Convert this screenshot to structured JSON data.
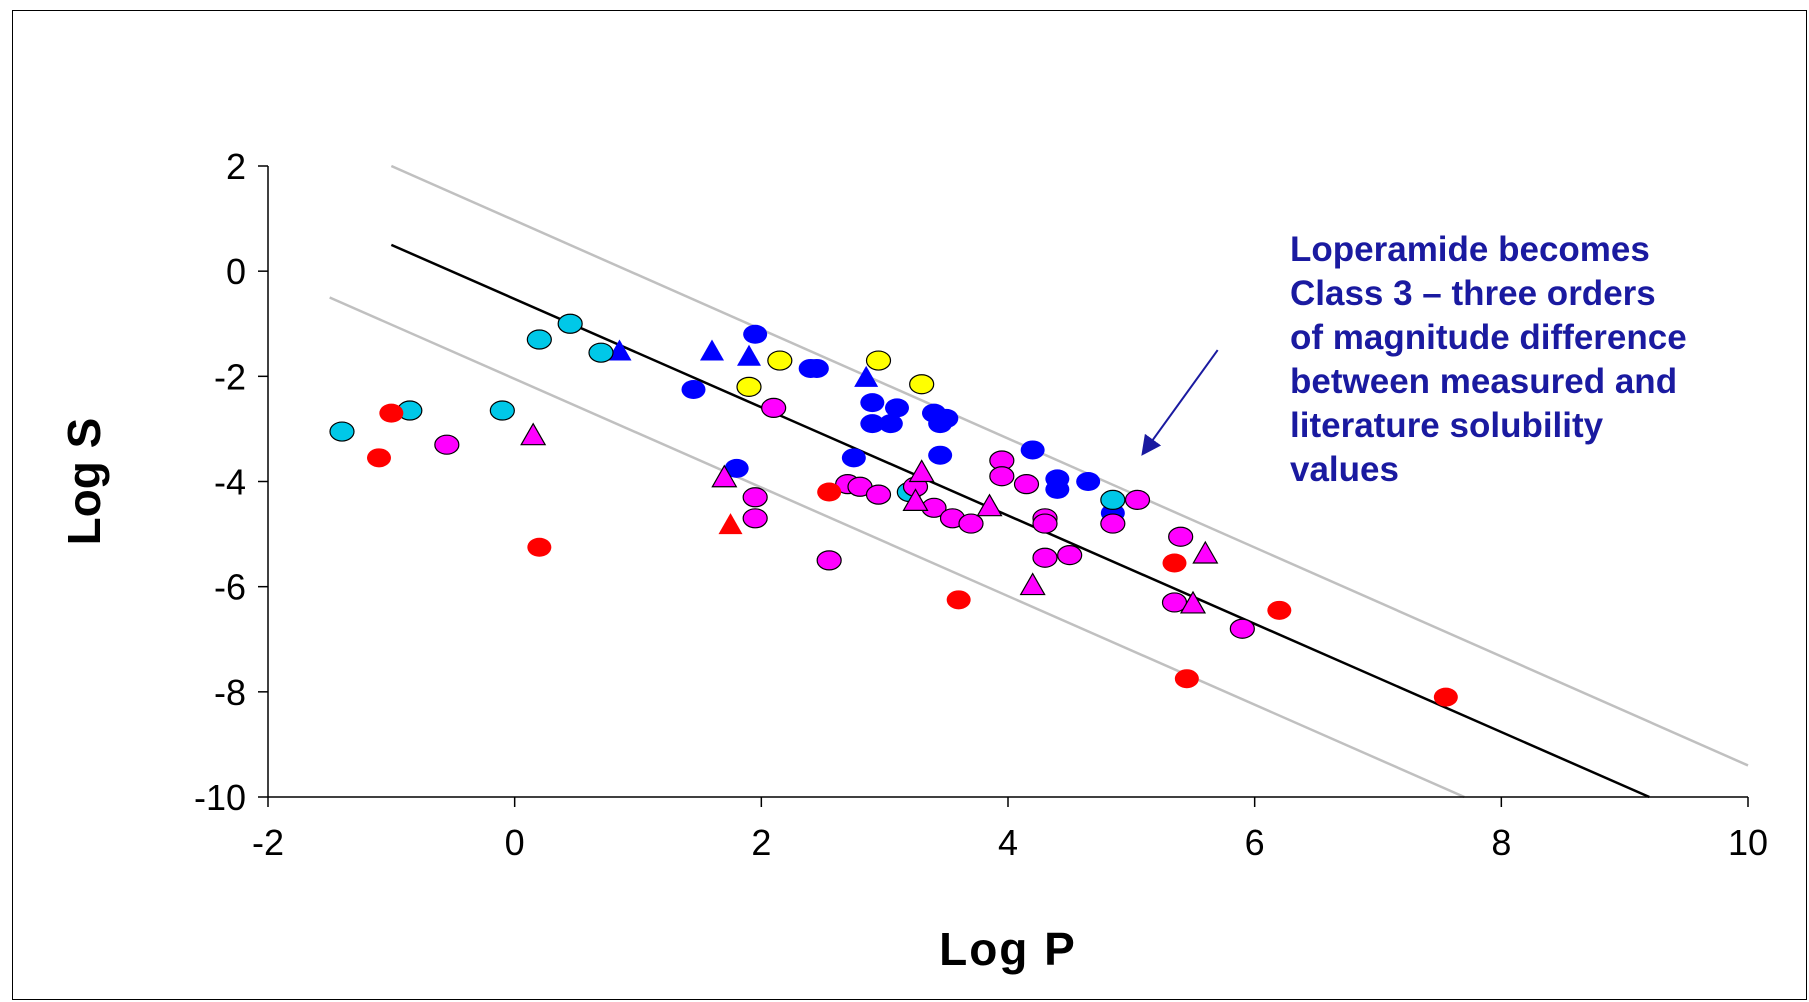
{
  "chart_data": {
    "type": "scatter",
    "xlabel": "Log P",
    "ylabel": "Log S",
    "xlim": [
      -2,
      10
    ],
    "ylim": [
      -10,
      2
    ],
    "x_ticks": [
      "-2",
      "0",
      "2",
      "4",
      "6",
      "8",
      "10"
    ],
    "y_ticks": [
      "2",
      "0",
      "-2",
      "-4",
      "-6",
      "-8",
      "-10"
    ],
    "grid": false,
    "annotation": {
      "lines": [
        "Loperamide becomes",
        "Class 3 – three orders",
        "of magnitude difference",
        "between measured and",
        "literature solubility",
        "values"
      ],
      "color": "#1a1aa0",
      "arrow_from": [
        5.7,
        -1.5
      ],
      "arrow_to": [
        5.1,
        -3.45
      ]
    },
    "reference_lines": [
      {
        "role": "fit",
        "color": "#000000",
        "x": [
          -1.0,
          9.2
        ],
        "y": [
          0.5,
          -10.0
        ]
      },
      {
        "role": "upper",
        "color": "#c0c0c0",
        "x": [
          -1.0,
          10.0
        ],
        "y": [
          2.0,
          -9.4
        ]
      },
      {
        "role": "lower",
        "color": "#c0c0c0",
        "x": [
          -1.5,
          7.7
        ],
        "y": [
          -0.5,
          -10.0
        ]
      }
    ],
    "series": [
      {
        "marker": "circle",
        "fill": "#0000ff",
        "stroke": "none",
        "points": [
          [
            1.95,
            -1.2
          ],
          [
            2.4,
            -1.85
          ],
          [
            2.45,
            -1.85
          ],
          [
            1.45,
            -2.25
          ],
          [
            2.9,
            -2.5
          ],
          [
            3.1,
            -2.6
          ],
          [
            3.4,
            -2.7
          ],
          [
            3.5,
            -2.8
          ],
          [
            2.9,
            -2.9
          ],
          [
            3.05,
            -2.9
          ],
          [
            3.45,
            -2.9
          ],
          [
            3.45,
            -3.5
          ],
          [
            2.75,
            -3.55
          ],
          [
            1.8,
            -3.75
          ],
          [
            4.2,
            -3.4
          ],
          [
            4.4,
            -3.95
          ],
          [
            4.65,
            -4.0
          ],
          [
            4.4,
            -4.15
          ],
          [
            4.85,
            -4.6
          ]
        ]
      },
      {
        "marker": "triangle",
        "fill": "#0000ff",
        "stroke": "none",
        "points": [
          [
            0.85,
            -1.5
          ],
          [
            1.6,
            -1.5
          ],
          [
            1.9,
            -1.6
          ],
          [
            2.85,
            -2.0
          ]
        ]
      },
      {
        "marker": "circle",
        "fill": "#00c8e8",
        "stroke": "#000000",
        "points": [
          [
            0.45,
            -1.0
          ],
          [
            0.2,
            -1.3
          ],
          [
            0.7,
            -1.55
          ],
          [
            -0.85,
            -2.65
          ],
          [
            -0.1,
            -2.65
          ],
          [
            -1.4,
            -3.05
          ],
          [
            4.85,
            -4.35
          ],
          [
            3.2,
            -4.2
          ]
        ]
      },
      {
        "marker": "circle",
        "fill": "#ffff00",
        "stroke": "#000000",
        "points": [
          [
            2.15,
            -1.7
          ],
          [
            2.95,
            -1.7
          ],
          [
            1.9,
            -2.2
          ],
          [
            3.3,
            -2.15
          ]
        ]
      },
      {
        "marker": "circle",
        "fill": "#ff00ff",
        "stroke": "#000000",
        "points": [
          [
            2.1,
            -2.6
          ],
          [
            -0.55,
            -3.3
          ],
          [
            1.95,
            -4.3
          ],
          [
            1.95,
            -4.7
          ],
          [
            2.7,
            -4.05
          ],
          [
            2.8,
            -4.1
          ],
          [
            2.95,
            -4.25
          ],
          [
            3.25,
            -4.1
          ],
          [
            3.4,
            -4.5
          ],
          [
            3.55,
            -4.7
          ],
          [
            3.7,
            -4.8
          ],
          [
            3.95,
            -3.6
          ],
          [
            3.95,
            -3.9
          ],
          [
            4.15,
            -4.05
          ],
          [
            4.3,
            -4.7
          ],
          [
            4.3,
            -4.8
          ],
          [
            4.3,
            -5.45
          ],
          [
            4.5,
            -5.4
          ],
          [
            4.85,
            -4.8
          ],
          [
            5.05,
            -4.35
          ],
          [
            2.55,
            -5.5
          ],
          [
            5.4,
            -5.05
          ],
          [
            5.35,
            -6.3
          ],
          [
            5.9,
            -6.8
          ]
        ]
      },
      {
        "marker": "triangle",
        "fill": "#ff00ff",
        "stroke": "#000000",
        "points": [
          [
            0.15,
            -3.1
          ],
          [
            1.7,
            -3.9
          ],
          [
            3.3,
            -3.8
          ],
          [
            3.25,
            -4.35
          ],
          [
            3.85,
            -4.45
          ],
          [
            4.2,
            -5.95
          ],
          [
            5.5,
            -6.3
          ],
          [
            5.6,
            -5.35
          ]
        ]
      },
      {
        "marker": "circle",
        "fill": "#ff0000",
        "stroke": "none",
        "points": [
          [
            -1.0,
            -2.7
          ],
          [
            -1.1,
            -3.55
          ],
          [
            0.2,
            -5.25
          ],
          [
            2.55,
            -4.2
          ],
          [
            3.6,
            -6.25
          ],
          [
            5.35,
            -5.55
          ],
          [
            5.45,
            -7.75
          ],
          [
            6.2,
            -6.45
          ],
          [
            7.55,
            -8.1
          ]
        ]
      },
      {
        "marker": "triangle",
        "fill": "#ff0000",
        "stroke": "none",
        "points": [
          [
            1.75,
            -4.8
          ]
        ]
      }
    ]
  }
}
